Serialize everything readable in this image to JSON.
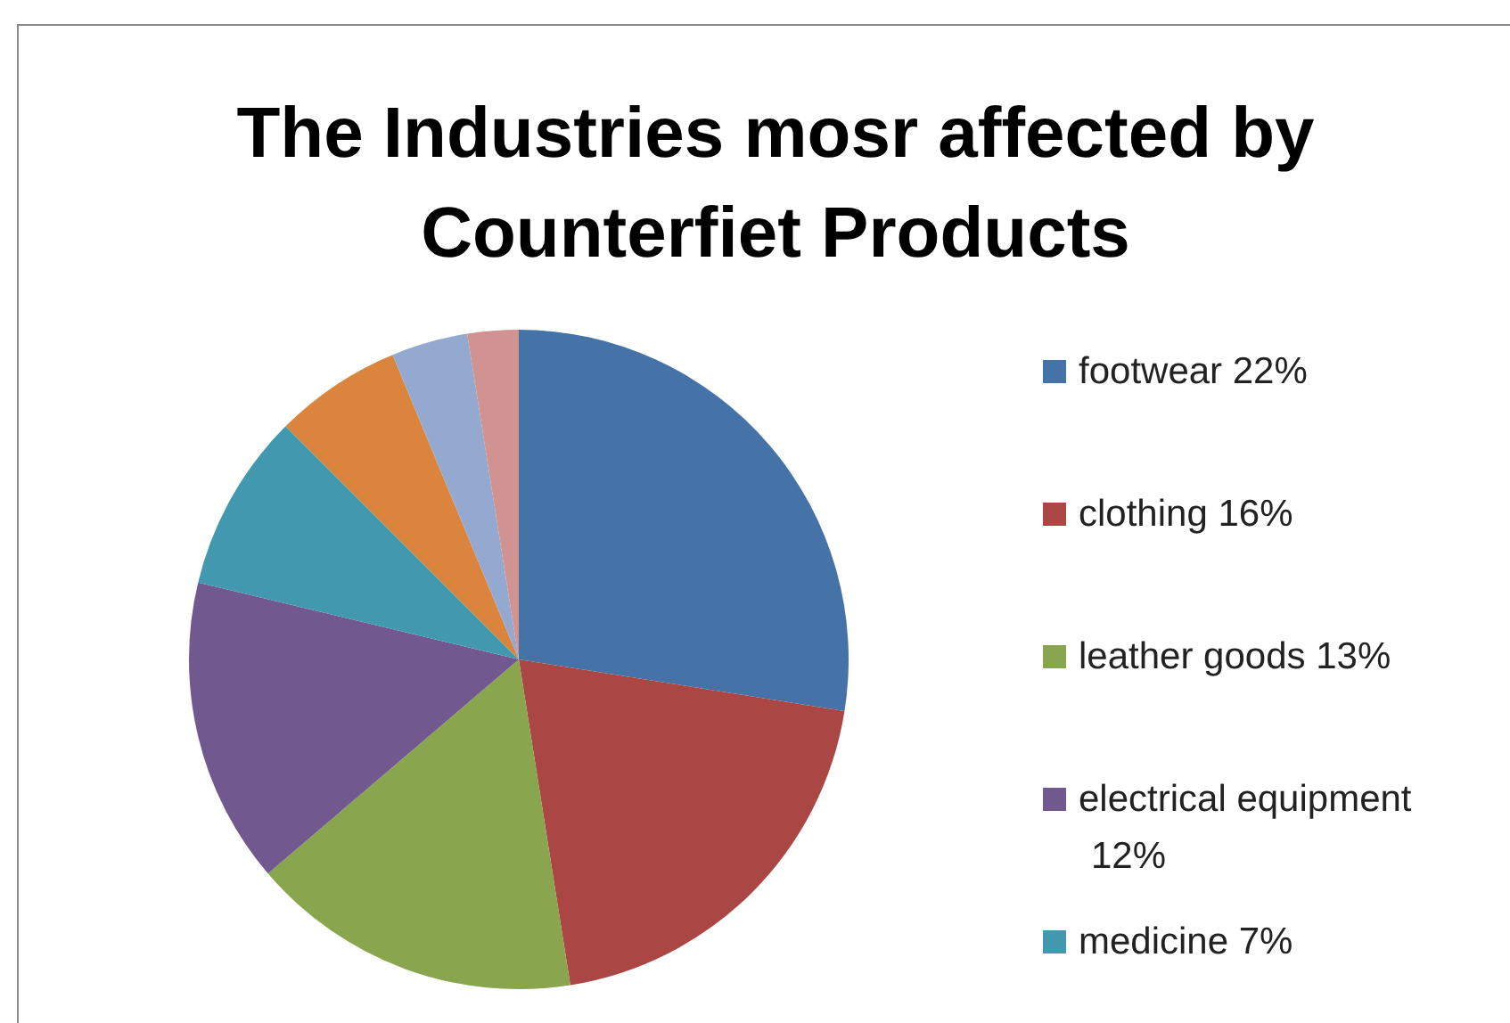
{
  "chart_data": {
    "type": "pie",
    "title": "The Industries mosr affected by Counterfiet Products",
    "categories": [
      "footwear 22%",
      "clothing 16%",
      "leather goods 13%",
      "electrical equipment 12%",
      "medicine 7%",
      null,
      null,
      null
    ],
    "values": [
      22,
      16,
      13,
      12,
      7,
      5,
      3,
      2
    ],
    "colors": [
      "#4572a7",
      "#aa4643",
      "#89a54e",
      "#71588f",
      "#4198af",
      "#db843d",
      "#93a9cf",
      "#d19392"
    ],
    "legend": "right"
  }
}
